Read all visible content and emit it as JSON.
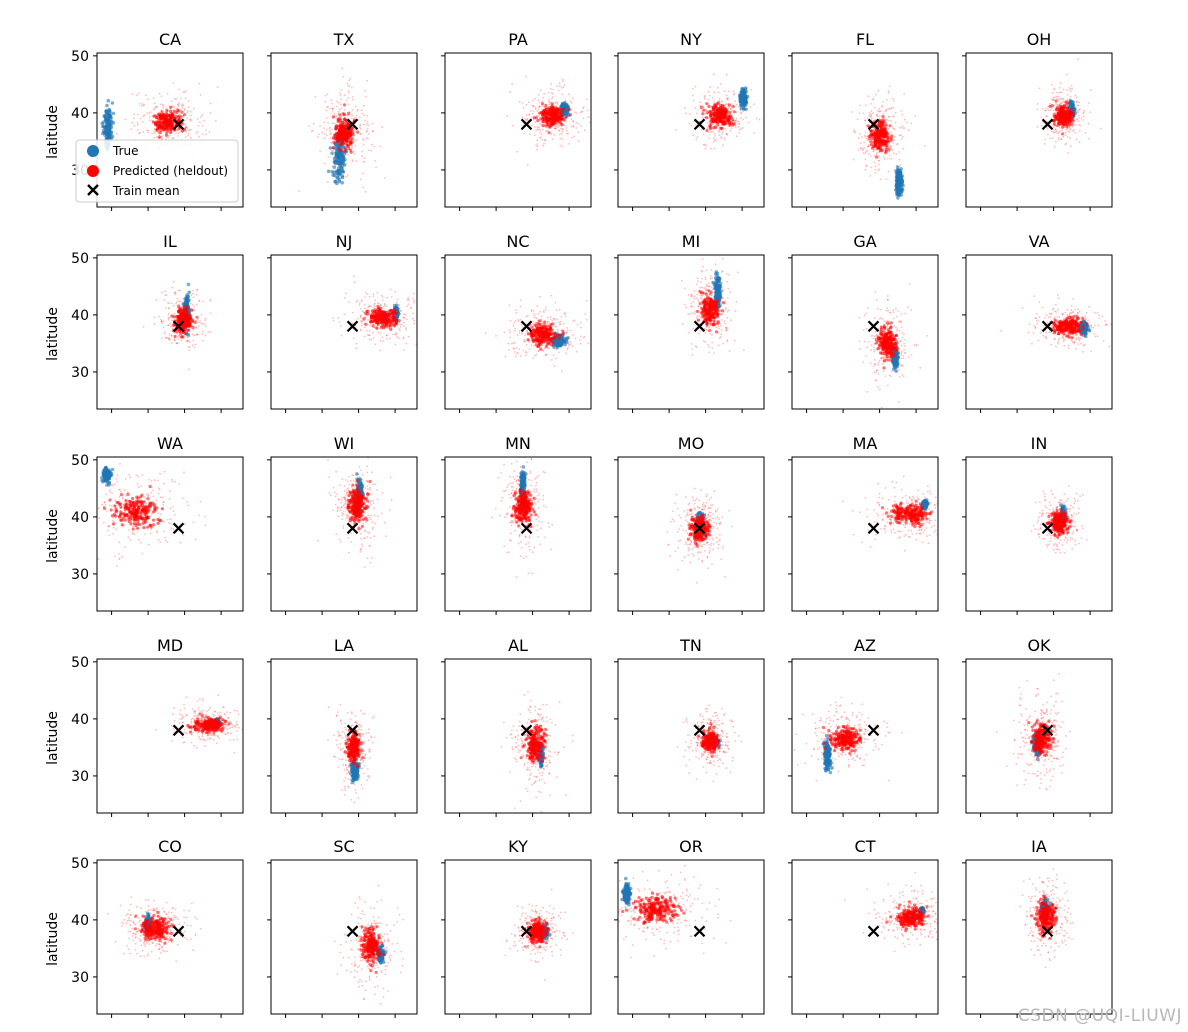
{
  "watermark": "CSDN @UQI-LIUWJ",
  "chart_data": {
    "type": "scatter",
    "layout": "5x6 grid of subplots",
    "ylabel": "latitude",
    "xlabel": "",
    "ylim": [
      23.5,
      50.5
    ],
    "xlim": [
      -126,
      -66
    ],
    "yticks": [
      30,
      40,
      50
    ],
    "xticks_unlabeled": [
      -120,
      -105,
      -90,
      -75
    ],
    "grid": false,
    "legend": {
      "placement": "lower-left of first panel",
      "entries": [
        {
          "label": "True",
          "marker": "circle",
          "color": "#1f77b4"
        },
        {
          "label": "Predicted (heldout)",
          "marker": "circle",
          "color": "#ff0000"
        },
        {
          "label": "Train mean",
          "marker": "x",
          "color": "#000000"
        }
      ]
    },
    "colors": {
      "true": "#1f77b4",
      "predicted": "#ff0000",
      "train_mean": "#000000"
    },
    "train_mean": {
      "lon": -92.5,
      "lat": 38.0
    },
    "panels": [
      {
        "title": "CA",
        "true": {
          "lon": -121.5,
          "lat": 37.5,
          "slon": 0.9,
          "slat": 1.8
        },
        "pred": {
          "lon": -97,
          "lat": 38.5,
          "slon": 4,
          "slat": 1.3
        }
      },
      {
        "title": "TX",
        "true": {
          "lon": -98,
          "lat": 32.5,
          "slon": 1.3,
          "slat": 2.2
        },
        "pred": {
          "lon": -96,
          "lat": 36.5,
          "slon": 3,
          "slat": 2
        }
      },
      {
        "title": "PA",
        "true": {
          "lon": -77,
          "lat": 40.6,
          "slon": 0.7,
          "slat": 0.5
        },
        "pred": {
          "lon": -82,
          "lat": 39.5,
          "slon": 3.5,
          "slat": 1.3
        }
      },
      {
        "title": "NY",
        "true": {
          "lon": -74.5,
          "lat": 42.5,
          "slon": 0.7,
          "slat": 0.8
        },
        "pred": {
          "lon": -84,
          "lat": 39.5,
          "slon": 3.5,
          "slat": 1.3
        }
      },
      {
        "title": "FL",
        "true": {
          "lon": -82,
          "lat": 28,
          "slon": 0.6,
          "slat": 1.2
        },
        "pred": {
          "lon": -90,
          "lat": 36,
          "slon": 2.5,
          "slat": 1.8
        }
      },
      {
        "title": "OH",
        "true": {
          "lon": -82.6,
          "lat": 40.5,
          "slon": 0.5,
          "slat": 0.6
        },
        "pred": {
          "lon": -86,
          "lat": 39.5,
          "slon": 2.5,
          "slat": 1.3
        }
      },
      {
        "title": "IL",
        "true": {
          "lon": -89.2,
          "lat": 40.5,
          "slon": 0.5,
          "slat": 1.3
        },
        "pred": {
          "lon": -90.5,
          "lat": 39,
          "slon": 2.5,
          "slat": 1.5
        }
      },
      {
        "title": "NJ",
        "true": {
          "lon": -74.6,
          "lat": 40.2,
          "slon": 0.4,
          "slat": 0.5
        },
        "pred": {
          "lon": -80,
          "lat": 39.5,
          "slon": 4,
          "slat": 1.2
        }
      },
      {
        "title": "NC",
        "true": {
          "lon": -79,
          "lat": 35.5,
          "slon": 1.4,
          "slat": 0.5
        },
        "pred": {
          "lon": -86,
          "lat": 36.5,
          "slon": 4,
          "slat": 1.3
        }
      },
      {
        "title": "MI",
        "true": {
          "lon": -85,
          "lat": 44,
          "slon": 0.6,
          "slat": 1.3
        },
        "pred": {
          "lon": -88,
          "lat": 41,
          "slon": 2.5,
          "slat": 1.8
        }
      },
      {
        "title": "GA",
        "true": {
          "lon": -83.6,
          "lat": 32.5,
          "slon": 0.5,
          "slat": 0.8
        },
        "pred": {
          "lon": -87,
          "lat": 35,
          "slon": 2.5,
          "slat": 1.8
        }
      },
      {
        "title": "VA",
        "true": {
          "lon": -77.5,
          "lat": 37.8,
          "slon": 0.8,
          "slat": 0.5
        },
        "pred": {
          "lon": -84,
          "lat": 38,
          "slon": 4,
          "slat": 1
        }
      },
      {
        "title": "WA",
        "true": {
          "lon": -122,
          "lat": 47.3,
          "slon": 0.8,
          "slat": 0.6
        },
        "pred": {
          "lon": -110,
          "lat": 41,
          "slon": 6,
          "slat": 1.8
        }
      },
      {
        "title": "WI",
        "true": {
          "lon": -89.5,
          "lat": 44,
          "slon": 0.6,
          "slat": 1.2
        },
        "pred": {
          "lon": -91,
          "lat": 42,
          "slon": 2.5,
          "slat": 2
        }
      },
      {
        "title": "MN",
        "true": {
          "lon": -94,
          "lat": 45,
          "slon": 0.5,
          "slat": 1.6
        },
        "pred": {
          "lon": -94,
          "lat": 41.5,
          "slon": 2.5,
          "slat": 2
        }
      },
      {
        "title": "MO",
        "true": {
          "lon": -92.5,
          "lat": 38.5,
          "slon": 0.8,
          "slat": 0.9
        },
        "pred": {
          "lon": -92.5,
          "lat": 38,
          "slon": 2.5,
          "slat": 1.5
        }
      },
      {
        "title": "MA",
        "true": {
          "lon": -71.5,
          "lat": 42.2,
          "slon": 0.5,
          "slat": 0.3
        },
        "pred": {
          "lon": -78,
          "lat": 40.5,
          "slon": 5,
          "slat": 1.2
        }
      },
      {
        "title": "IN",
        "true": {
          "lon": -86.3,
          "lat": 40,
          "slon": 0.5,
          "slat": 0.8
        },
        "pred": {
          "lon": -88,
          "lat": 39,
          "slon": 2.5,
          "slat": 1.3
        }
      },
      {
        "title": "MD",
        "true": {
          "lon": -76.7,
          "lat": 39.2,
          "slon": 0.5,
          "slat": 0.3
        },
        "pred": {
          "lon": -80,
          "lat": 39,
          "slon": 4,
          "slat": 0.9
        }
      },
      {
        "title": "LA",
        "true": {
          "lon": -91.5,
          "lat": 31,
          "slon": 0.7,
          "slat": 0.8
        },
        "pred": {
          "lon": -92,
          "lat": 35,
          "slon": 1.8,
          "slat": 1.8
        }
      },
      {
        "title": "AL",
        "true": {
          "lon": -86.7,
          "lat": 33.5,
          "slon": 0.5,
          "slat": 0.8
        },
        "pred": {
          "lon": -89,
          "lat": 35.5,
          "slon": 2.5,
          "slat": 2
        }
      },
      {
        "title": "TN",
        "true": {
          "lon": -86.5,
          "lat": 36,
          "slon": 0.8,
          "slat": 0.4
        },
        "pred": {
          "lon": -88,
          "lat": 36,
          "slon": 2.5,
          "slat": 1.3
        }
      },
      {
        "title": "AZ",
        "true": {
          "lon": -111.5,
          "lat": 33.5,
          "slon": 0.6,
          "slat": 1.2
        },
        "pred": {
          "lon": -104,
          "lat": 36.5,
          "slon": 4,
          "slat": 1.4
        }
      },
      {
        "title": "OK",
        "true": {
          "lon": -97,
          "lat": 35.5,
          "slon": 0.8,
          "slat": 0.8
        },
        "pred": {
          "lon": -95,
          "lat": 36.5,
          "slon": 2.5,
          "slat": 2
        }
      },
      {
        "title": "CO",
        "true": {
          "lon": -105,
          "lat": 39.2,
          "slon": 0.5,
          "slat": 0.6
        },
        "pred": {
          "lon": -102,
          "lat": 38.5,
          "slon": 4,
          "slat": 1.3
        }
      },
      {
        "title": "SC",
        "true": {
          "lon": -81,
          "lat": 34,
          "slon": 0.6,
          "slat": 0.6
        },
        "pred": {
          "lon": -85,
          "lat": 35.5,
          "slon": 2.5,
          "slat": 2
        }
      },
      {
        "title": "KY",
        "true": {
          "lon": -85.5,
          "lat": 37.8,
          "slon": 0.8,
          "slat": 0.5
        },
        "pred": {
          "lon": -88,
          "lat": 38,
          "slon": 2.5,
          "slat": 1.2
        }
      },
      {
        "title": "OR",
        "true": {
          "lon": -122.5,
          "lat": 44.5,
          "slon": 0.7,
          "slat": 0.8
        },
        "pred": {
          "lon": -110,
          "lat": 42,
          "slon": 6,
          "slat": 1.6
        }
      },
      {
        "title": "CT",
        "true": {
          "lon": -72.7,
          "lat": 41.6,
          "slon": 0.4,
          "slat": 0.2
        },
        "pred": {
          "lon": -77,
          "lat": 40.5,
          "slon": 4,
          "slat": 1.2
        }
      },
      {
        "title": "IA",
        "true": {
          "lon": -93.5,
          "lat": 42,
          "slon": 0.8,
          "slat": 0.6
        },
        "pred": {
          "lon": -93,
          "lat": 40.5,
          "slon": 2.5,
          "slat": 1.8
        }
      }
    ]
  }
}
